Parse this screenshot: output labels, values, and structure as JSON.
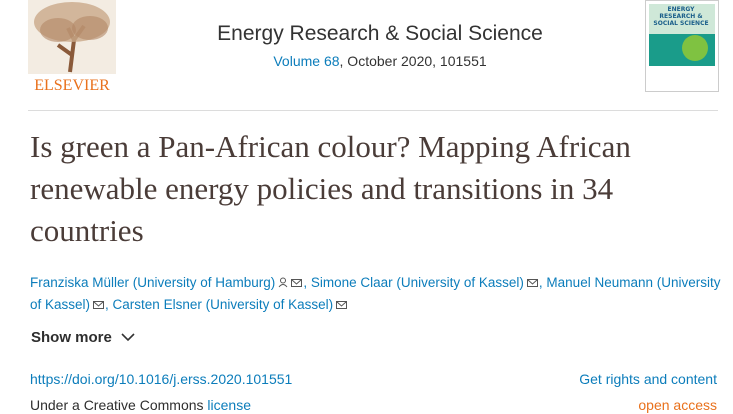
{
  "header": {
    "publisher": "ELSEVIER",
    "journal": "Energy Research & Social Science",
    "volume_link": "Volume 68",
    "citation": ", October 2020, 101551",
    "cover_title": "ENERGY RESEARCH & SOCIAL SCIENCE"
  },
  "article": {
    "title": "Is green a Pan-African colour? Mapping African renewable energy policies and transitions in 34 countries",
    "authors": [
      "Franziska Müller (University of Hamburg)",
      "Simone Claar (University of Kassel)",
      "Manuel Neumann (University of Kassel)",
      "Carsten Elsner (University of Kassel)"
    ],
    "show_more": "Show more",
    "doi": "https://doi.org/10.1016/j.erss.2020.101551",
    "rights": "Get rights and content",
    "license_prefix": "Under a Creative Commons",
    "license_link": "license",
    "access": "open access"
  }
}
